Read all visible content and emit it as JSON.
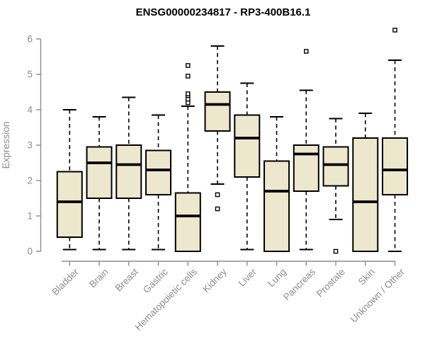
{
  "chart_data": {
    "type": "boxplot",
    "title": "ENSG00000234817 - RP3-400B16.1",
    "xlabel": "",
    "ylabel": "Expression",
    "ylim": [
      0,
      6.4
    ],
    "yticks": [
      0,
      1,
      2,
      3,
      4,
      5,
      6
    ],
    "grid": "off",
    "legend": "none",
    "categories": [
      "Bladder",
      "Brain",
      "Breast",
      "Gastric",
      "Hematopoietic cells",
      "Kidney",
      "Liver",
      "Lung",
      "Pancreas",
      "Prostate",
      "Skin",
      "Unknown / Other"
    ],
    "boxes": [
      {
        "category": "Bladder",
        "whisker_low": 0.05,
        "q1": 0.4,
        "median": 1.4,
        "q3": 2.25,
        "whisker_high": 4.0,
        "outliers": []
      },
      {
        "category": "Brain",
        "whisker_low": 0.05,
        "q1": 1.5,
        "median": 2.5,
        "q3": 2.95,
        "whisker_high": 3.8,
        "outliers": []
      },
      {
        "category": "Breast",
        "whisker_low": 0.05,
        "q1": 1.5,
        "median": 2.45,
        "q3": 3.0,
        "whisker_high": 4.35,
        "outliers": []
      },
      {
        "category": "Gastric",
        "whisker_low": 0.05,
        "q1": 1.6,
        "median": 2.3,
        "q3": 2.85,
        "whisker_high": 3.85,
        "outliers": []
      },
      {
        "category": "Hematopoietic cells",
        "whisker_low": 0.0,
        "q1": 0.0,
        "median": 1.0,
        "q3": 1.65,
        "whisker_high": 4.1,
        "outliers": [
          4.2,
          4.3,
          4.4,
          4.45,
          4.95,
          5.25
        ]
      },
      {
        "category": "Kidney",
        "whisker_low": 1.9,
        "q1": 3.4,
        "median": 4.15,
        "q3": 4.5,
        "whisker_high": 5.8,
        "outliers": [
          1.6,
          1.2
        ]
      },
      {
        "category": "Liver",
        "whisker_low": 0.05,
        "q1": 2.1,
        "median": 3.2,
        "q3": 3.85,
        "whisker_high": 4.75,
        "outliers": []
      },
      {
        "category": "Lung",
        "whisker_low": 0.0,
        "q1": 0.0,
        "median": 1.7,
        "q3": 2.55,
        "whisker_high": 3.8,
        "outliers": []
      },
      {
        "category": "Pancreas",
        "whisker_low": 0.05,
        "q1": 1.7,
        "median": 2.75,
        "q3": 3.0,
        "whisker_high": 4.55,
        "outliers": [
          5.65
        ]
      },
      {
        "category": "Prostate",
        "whisker_low": 0.9,
        "q1": 1.85,
        "median": 2.45,
        "q3": 2.95,
        "whisker_high": 3.75,
        "outliers": [
          0.0
        ]
      },
      {
        "category": "Skin",
        "whisker_low": 0.0,
        "q1": 0.0,
        "median": 1.4,
        "q3": 3.2,
        "whisker_high": 3.9,
        "outliers": []
      },
      {
        "category": "Unknown / Other",
        "whisker_low": 0.0,
        "q1": 1.6,
        "median": 2.3,
        "q3": 3.2,
        "whisker_high": 5.4,
        "outliers": [
          6.25
        ]
      }
    ],
    "style": {
      "box_fill": "#EDE8CD",
      "box_border": "#000000",
      "median_color": "#000000",
      "whisker_color": "#000000",
      "whisker_style": "dashed",
      "outlier_marker": "open-square",
      "outlier_color": "#000000",
      "axis_color": "#8C8C8C",
      "tick_label_color": "#8C8C8C",
      "title_color": "#000000",
      "background": "#FFFFFF"
    }
  }
}
